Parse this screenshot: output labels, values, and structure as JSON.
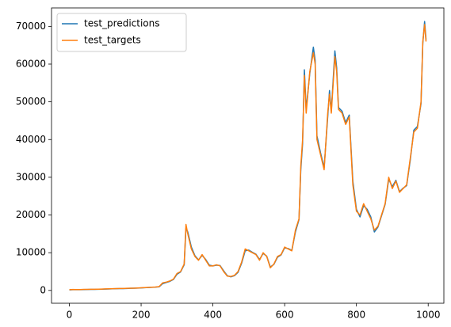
{
  "chart_data": {
    "type": "line",
    "x": [
      0,
      10,
      20,
      30,
      40,
      50,
      60,
      70,
      80,
      90,
      100,
      110,
      120,
      130,
      140,
      150,
      160,
      170,
      180,
      190,
      200,
      210,
      220,
      230,
      240,
      250,
      260,
      270,
      280,
      290,
      300,
      310,
      320,
      325,
      330,
      340,
      350,
      360,
      370,
      380,
      390,
      400,
      410,
      420,
      430,
      440,
      450,
      460,
      470,
      480,
      490,
      500,
      510,
      520,
      530,
      540,
      550,
      560,
      570,
      580,
      590,
      600,
      610,
      620,
      630,
      640,
      645,
      650,
      655,
      660,
      670,
      680,
      685,
      690,
      700,
      710,
      720,
      725,
      730,
      740,
      745,
      750,
      760,
      770,
      780,
      790,
      800,
      810,
      820,
      830,
      840,
      850,
      860,
      870,
      880,
      890,
      900,
      910,
      920,
      930,
      940,
      950,
      960,
      970,
      980,
      985,
      990,
      994
    ],
    "series": [
      {
        "name": "test_predictions",
        "color": "#1f77b4",
        "values": [
          150,
          200,
          200,
          190,
          220,
          240,
          260,
          280,
          300,
          320,
          360,
          390,
          420,
          450,
          470,
          490,
          520,
          550,
          580,
          620,
          670,
          720,
          770,
          820,
          870,
          950,
          1800,
          2100,
          2400,
          2900,
          4300,
          4900,
          6800,
          16500,
          15500,
          11500,
          9200,
          8100,
          9300,
          8200,
          6700,
          6500,
          6700,
          6600,
          5200,
          3900,
          3600,
          3900,
          4800,
          7200,
          10500,
          10700,
          10100,
          9600,
          8200,
          9800,
          9100,
          6200,
          6900,
          8800,
          9400,
          11300,
          11100,
          10600,
          15500,
          18800,
          32000,
          39000,
          58500,
          48000,
          57500,
          64500,
          61000,
          41000,
          36500,
          32500,
          46000,
          53000,
          47500,
          63500,
          59000,
          48500,
          47500,
          44500,
          46500,
          29000,
          21500,
          19500,
          22500,
          21500,
          19500,
          15500,
          16800,
          19800,
          22800,
          29500,
          27500,
          29200,
          26200,
          27100,
          27800,
          34500,
          42500,
          43500,
          49500,
          65500,
          71300,
          66500
        ]
      },
      {
        "name": "test_targets",
        "color": "#ff7f0e",
        "values": [
          200,
          250,
          230,
          220,
          260,
          280,
          300,
          310,
          330,
          350,
          400,
          420,
          450,
          480,
          500,
          520,
          550,
          580,
          600,
          650,
          700,
          750,
          800,
          850,
          900,
          1000,
          2000,
          2200,
          2500,
          3000,
          4500,
          5000,
          7000,
          17500,
          15000,
          11000,
          9000,
          8000,
          9500,
          8000,
          6500,
          6500,
          6800,
          6500,
          5000,
          3800,
          3700,
          4000,
          5000,
          7500,
          11000,
          10500,
          10000,
          9500,
          8000,
          10000,
          9000,
          6000,
          7000,
          9000,
          9500,
          11500,
          11000,
          10500,
          16000,
          19000,
          33000,
          40000,
          57000,
          47000,
          58000,
          63000,
          60000,
          40000,
          36000,
          32000,
          47000,
          52000,
          47000,
          62000,
          58000,
          48000,
          47000,
          44000,
          46000,
          28000,
          21000,
          20000,
          23000,
          21000,
          19000,
          16000,
          17000,
          20000,
          23000,
          30000,
          27000,
          29000,
          26000,
          27000,
          28000,
          35000,
          42000,
          43000,
          50000,
          66000,
          70500,
          66000
        ]
      }
    ],
    "xlim": [
      -49.7,
      1043.7
    ],
    "xticks": [
      0,
      200,
      400,
      600,
      800,
      1000
    ],
    "ylim": [
      -3400,
      74900
    ],
    "yticks": [
      0,
      10000,
      20000,
      30000,
      40000,
      50000,
      60000,
      70000
    ],
    "legend": "upper left"
  }
}
